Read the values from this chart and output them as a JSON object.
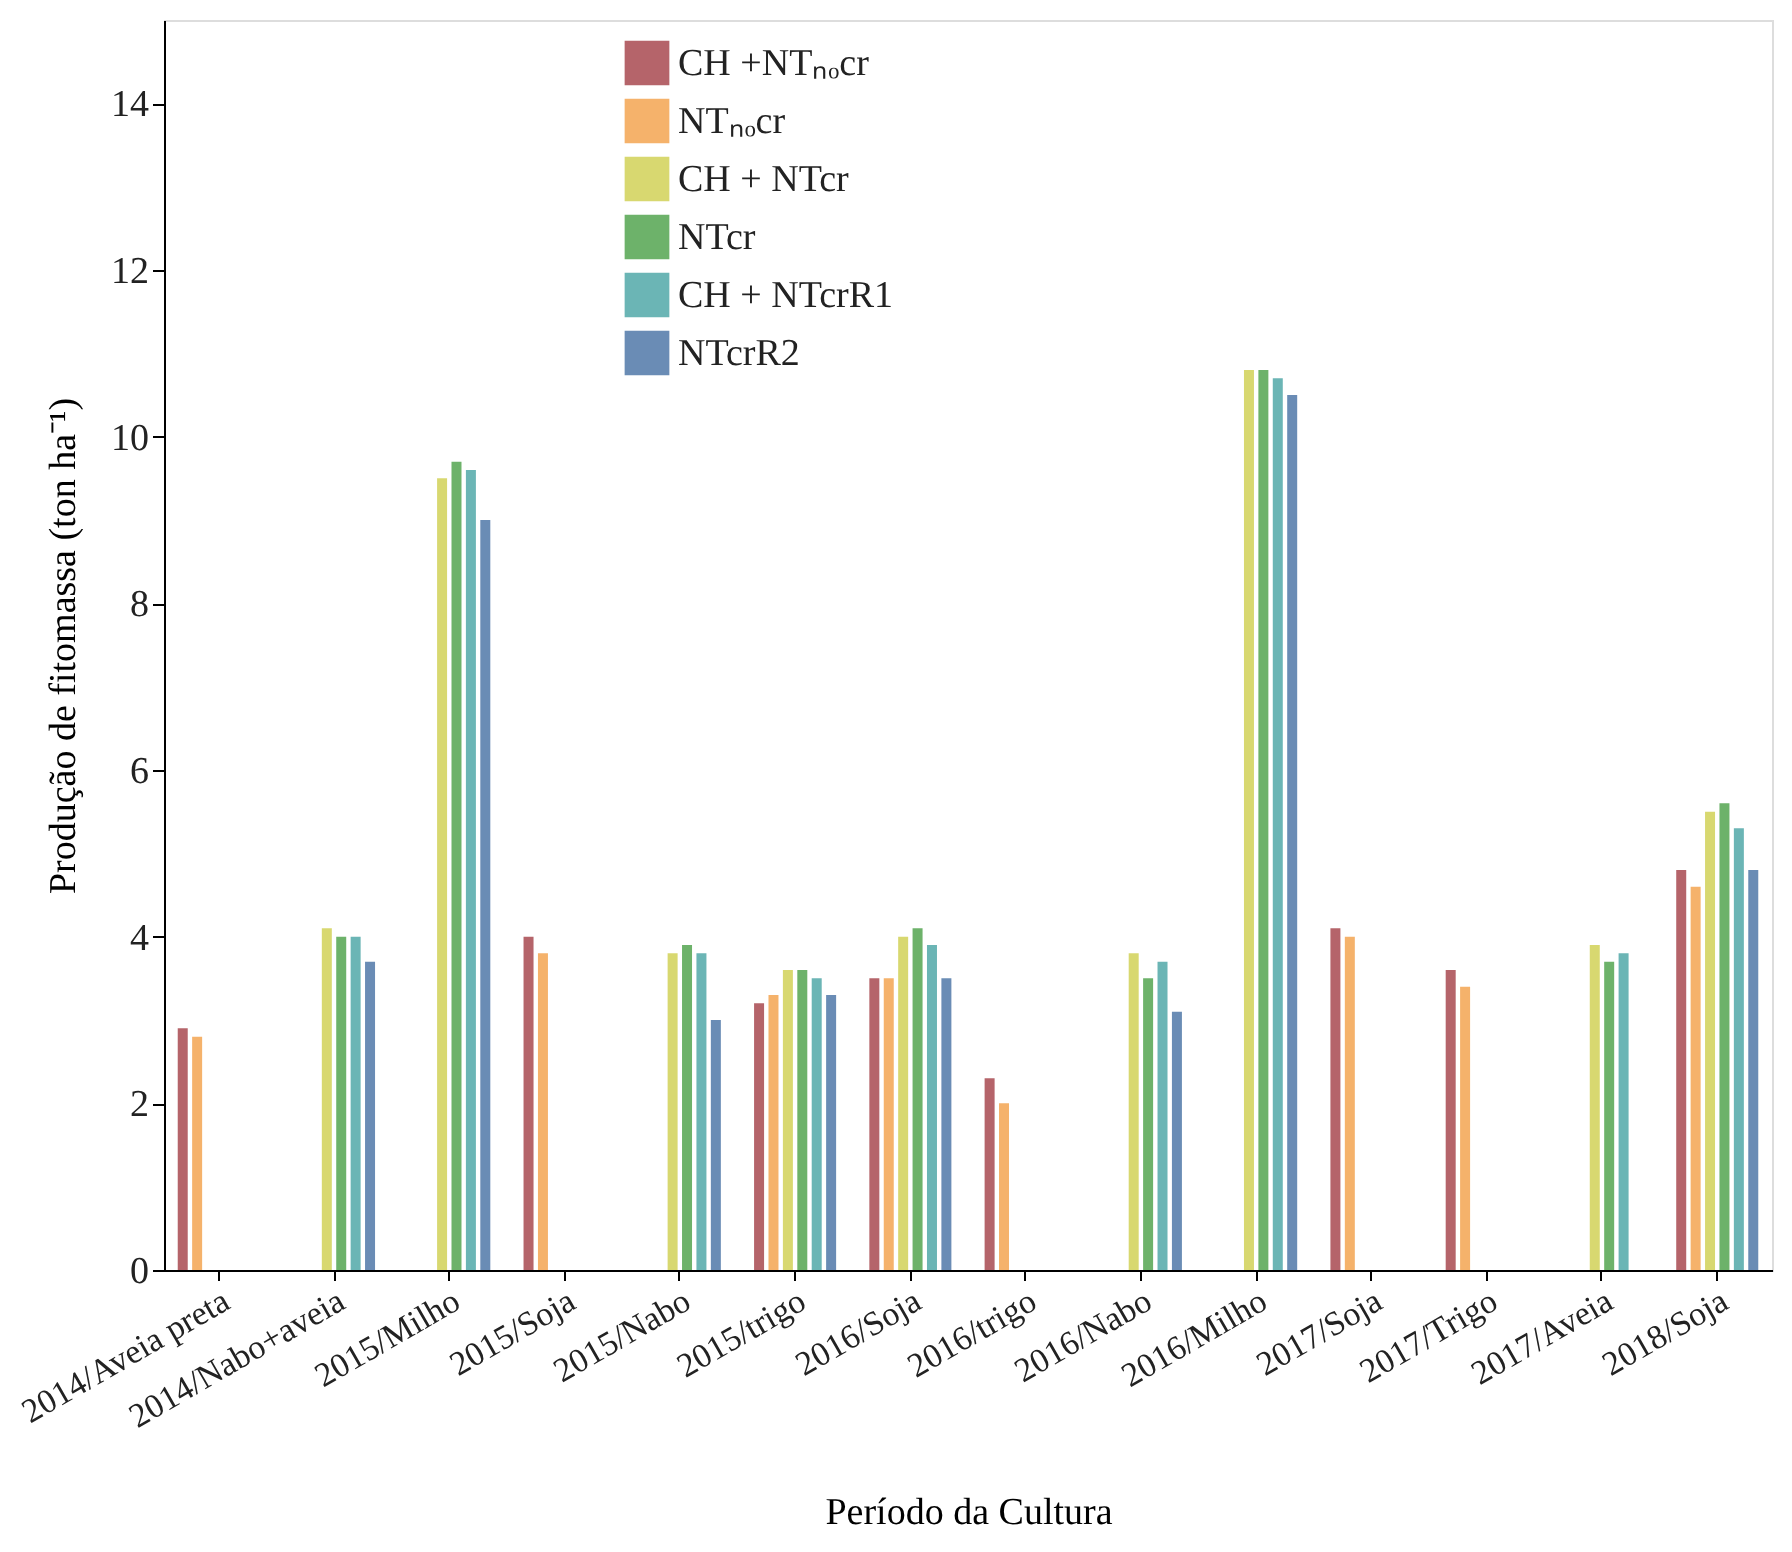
{
  "chart_data": {
    "type": "bar",
    "xlabel": "Período da Cultura",
    "ylabel": "Produção de fitomassa (ton ha⁻¹)",
    "categories": [
      "2014/Aveia preta",
      "2014/Nabo+aveia",
      "2015/Milho",
      "2015/Soja",
      "2015/Nabo",
      "2015/trigo",
      "2016/Soja",
      "2016/trigo",
      "2016/Nabo",
      "2016/Milho",
      "2017/Soja",
      "2017/Trigo",
      "2017/Aveia",
      "2018/Soja"
    ],
    "series": [
      {
        "name": "CH +NTₙₒcr",
        "color": "#b5646a",
        "values": [
          2.9,
          null,
          null,
          4.0,
          null,
          3.2,
          3.5,
          2.3,
          null,
          null,
          4.1,
          3.6,
          null,
          4.8
        ]
      },
      {
        "name": "NTₙₒcr",
        "color": "#f5b26b",
        "values": [
          2.8,
          null,
          null,
          3.8,
          null,
          3.3,
          3.5,
          2.0,
          null,
          null,
          4.0,
          3.4,
          null,
          4.6
        ]
      },
      {
        "name": "CH + NTcr",
        "color": "#d8d870",
        "values": [
          null,
          4.1,
          9.5,
          null,
          3.8,
          3.6,
          4.0,
          null,
          3.8,
          10.8,
          null,
          null,
          3.9,
          5.5
        ]
      },
      {
        "name": " NTcr",
        "color": "#6db26a",
        "values": [
          null,
          4.0,
          9.7,
          null,
          3.9,
          3.6,
          4.1,
          null,
          3.5,
          10.8,
          null,
          null,
          3.7,
          5.6
        ]
      },
      {
        "name": "CH + NTcrR1",
        "color": "#6bb5b5",
        "values": [
          null,
          4.0,
          9.6,
          null,
          3.8,
          3.5,
          3.9,
          null,
          3.7,
          10.7,
          null,
          null,
          3.8,
          5.3
        ]
      },
      {
        "name": "NTcrR2",
        "color": "#6a8cb5",
        "values": [
          null,
          3.7,
          9.0,
          null,
          3.0,
          3.3,
          3.5,
          null,
          3.1,
          10.5,
          null,
          null,
          null,
          4.8
        ]
      }
    ],
    "ylim": [
      0,
      15
    ],
    "yticks": [
      0,
      2,
      4,
      6,
      8,
      10,
      12,
      14
    ],
    "grid": false,
    "legend": "top"
  }
}
